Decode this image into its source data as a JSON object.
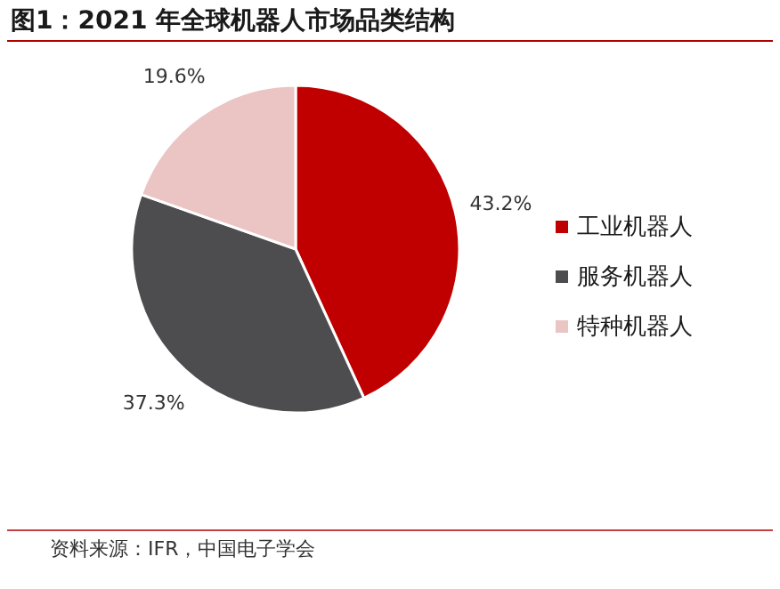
{
  "chart_data": {
    "type": "pie",
    "title": "图1：2021 年全球机器人市场品类结构",
    "categories": [
      "工业机器人",
      "服务机器人",
      "特种机器人"
    ],
    "values": [
      43.2,
      37.3,
      19.6
    ],
    "value_labels": [
      "43.2%",
      "37.3%",
      "19.6%"
    ],
    "colors": [
      "#c00000",
      "#4d4d4f",
      "#ebc4c4"
    ],
    "legend": "right",
    "annotations": [
      "资料来源：IFR，中国电子学会"
    ]
  }
}
